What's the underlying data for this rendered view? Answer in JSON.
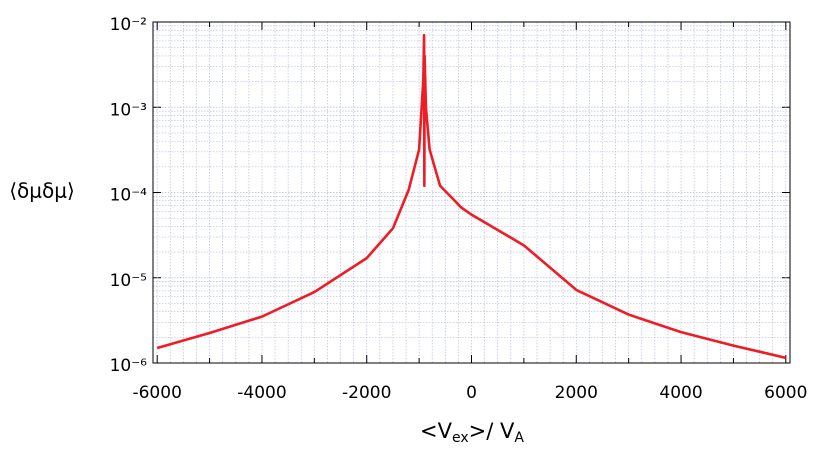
{
  "chart_data": {
    "type": "line",
    "ylabel": "⟨δμδμ⟩",
    "xlabel": [
      "<V",
      "ex",
      ">/ V",
      "A"
    ],
    "x": [
      -6000,
      -5000,
      -4000,
      -3000,
      -2000,
      -1500,
      -1200,
      -1000,
      -920,
      -905,
      -900,
      -895,
      -870,
      -800,
      -600,
      -400,
      -200,
      0,
      1000,
      2000,
      3000,
      4000,
      5000,
      6000
    ],
    "series": [
      {
        "color": "#ee1c25",
        "values": [
          1.5e-06,
          2.25e-06,
          3.5e-06,
          6.8e-06,
          1.7e-05,
          3.8e-05,
          0.000107,
          0.00032,
          0.0021,
          0.007,
          0.00012,
          0.004,
          0.001,
          0.00032,
          0.00012,
          9e-05,
          6.7e-05,
          5.5e-05,
          2.4e-05,
          7.2e-06,
          3.7e-06,
          2.3e-06,
          1.6e-06,
          1.15e-06
        ]
      }
    ],
    "xlim": [
      -6080,
      6080
    ],
    "ylim": [
      1e-06,
      0.01
    ],
    "log_y": true,
    "grid": true,
    "xticks": [
      -6000,
      -4000,
      -2000,
      0,
      2000,
      4000,
      6000
    ],
    "yticks": [
      {
        "value": 1e-06,
        "label": "10⁻⁶"
      },
      {
        "value": 1e-05,
        "label": "10⁻⁵"
      },
      {
        "value": 0.0001,
        "label": "10⁻⁴"
      },
      {
        "value": 0.001,
        "label": "10⁻³"
      },
      {
        "value": 0.01,
        "label": "10⁻²"
      }
    ]
  }
}
